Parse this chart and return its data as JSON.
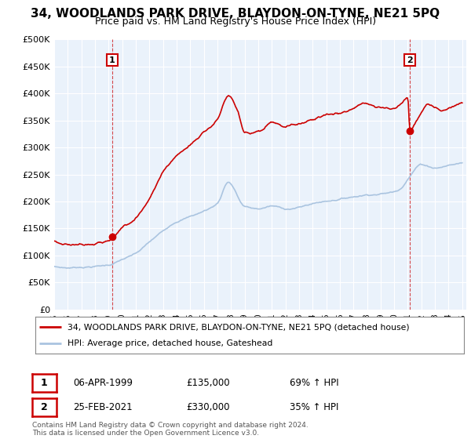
{
  "title": "34, WOODLANDS PARK DRIVE, BLAYDON-ON-TYNE, NE21 5PQ",
  "subtitle": "Price paid vs. HM Land Registry's House Price Index (HPI)",
  "ylim": [
    0,
    500000
  ],
  "yticks": [
    0,
    50000,
    100000,
    150000,
    200000,
    250000,
    300000,
    350000,
    400000,
    450000,
    500000
  ],
  "ytick_labels": [
    "£0",
    "£50K",
    "£100K",
    "£150K",
    "£200K",
    "£250K",
    "£300K",
    "£350K",
    "£400K",
    "£450K",
    "£500K"
  ],
  "hpi_color": "#aac4e0",
  "price_color": "#cc0000",
  "sale1_date": 1999.27,
  "sale1_price": 135000,
  "sale2_date": 2021.15,
  "sale2_price": 330000,
  "legend_line1": "34, WOODLANDS PARK DRIVE, BLAYDON-ON-TYNE, NE21 5PQ (detached house)",
  "legend_line2": "HPI: Average price, detached house, Gateshead",
  "table_row1": [
    "1",
    "06-APR-1999",
    "£135,000",
    "69% ↑ HPI"
  ],
  "table_row2": [
    "2",
    "25-FEB-2021",
    "£330,000",
    "35% ↑ HPI"
  ],
  "footer": "Contains HM Land Registry data © Crown copyright and database right 2024.\nThis data is licensed under the Open Government Licence v3.0.",
  "background_color": "#ffffff",
  "plot_bg_color": "#eaf2fb",
  "grid_color": "#ffffff",
  "title_fontsize": 11,
  "subtitle_fontsize": 9,
  "axis_fontsize": 8
}
